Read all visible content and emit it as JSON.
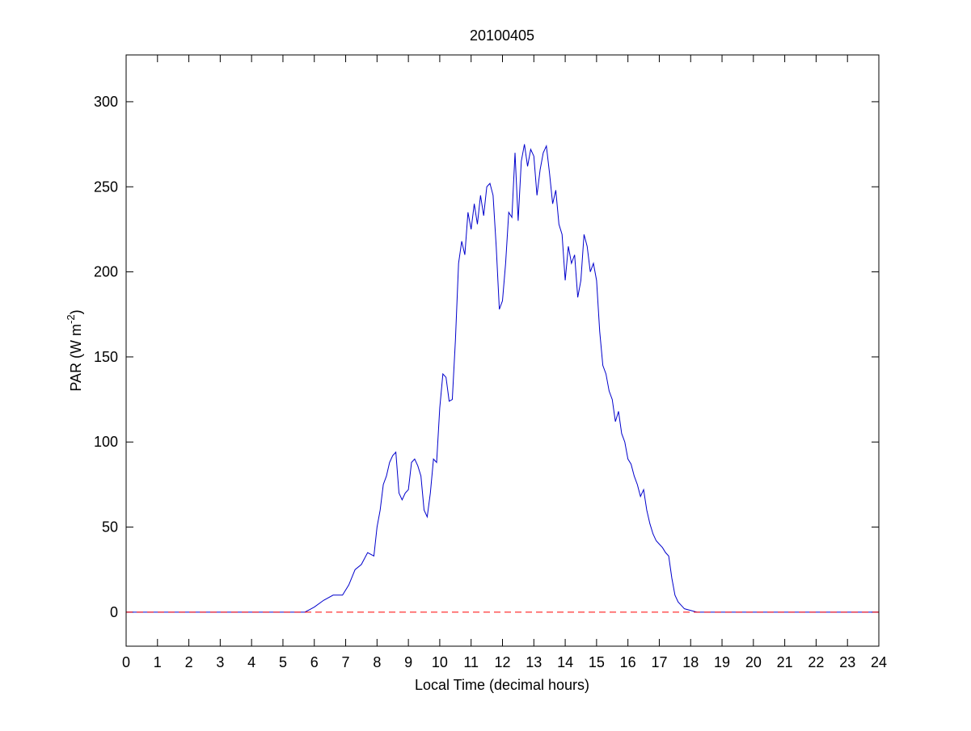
{
  "chart_data": {
    "type": "line",
    "title": "20100405",
    "xlabel": "Local Time (decimal hours)",
    "ylabel": {
      "text": "PAR (W m",
      "sup": "-2",
      "end": ")"
    },
    "x": [
      0,
      5.7,
      6.0,
      6.3,
      6.6,
      6.9,
      7.1,
      7.3,
      7.5,
      7.7,
      7.9,
      8.0,
      8.1,
      8.2,
      8.3,
      8.4,
      8.5,
      8.6,
      8.7,
      8.8,
      8.9,
      9.0,
      9.1,
      9.2,
      9.3,
      9.4,
      9.5,
      9.6,
      9.7,
      9.8,
      9.9,
      10.0,
      10.1,
      10.2,
      10.3,
      10.4,
      10.5,
      10.6,
      10.7,
      10.8,
      10.9,
      11.0,
      11.1,
      11.2,
      11.3,
      11.4,
      11.5,
      11.6,
      11.7,
      11.8,
      11.9,
      12.0,
      12.1,
      12.2,
      12.3,
      12.4,
      12.5,
      12.6,
      12.7,
      12.8,
      12.9,
      13.0,
      13.1,
      13.2,
      13.3,
      13.4,
      13.5,
      13.6,
      13.7,
      13.8,
      13.9,
      14.0,
      14.1,
      14.2,
      14.3,
      14.4,
      14.5,
      14.6,
      14.7,
      14.8,
      14.9,
      15.0,
      15.1,
      15.2,
      15.3,
      15.4,
      15.5,
      15.6,
      15.7,
      15.8,
      15.9,
      16.0,
      16.1,
      16.2,
      16.3,
      16.4,
      16.5,
      16.6,
      16.7,
      16.8,
      16.9,
      17.0,
      17.1,
      17.2,
      17.3,
      17.4,
      17.5,
      17.6,
      17.7,
      17.8,
      18.0,
      18.2,
      24
    ],
    "series": [
      {
        "color": "#0000cc",
        "values": [
          0,
          0,
          3,
          7,
          10,
          10,
          16,
          25,
          28,
          35,
          33,
          50,
          60,
          75,
          80,
          88,
          92,
          94,
          70,
          66,
          70,
          72,
          88,
          90,
          86,
          80,
          60,
          56,
          70,
          90,
          88,
          120,
          140,
          138,
          124,
          125,
          160,
          205,
          218,
          210,
          235,
          225,
          240,
          228,
          245,
          233,
          250,
          252,
          245,
          215,
          178,
          183,
          205,
          235,
          232,
          270,
          230,
          265,
          275,
          262,
          272,
          268,
          245,
          260,
          270,
          274,
          258,
          240,
          248,
          228,
          222,
          195,
          215,
          205,
          210,
          185,
          195,
          222,
          215,
          200,
          205,
          195,
          165,
          145,
          140,
          130,
          125,
          112,
          118,
          105,
          100,
          90,
          87,
          80,
          75,
          68,
          72,
          60,
          52,
          46,
          42,
          40,
          38,
          35,
          33,
          20,
          10,
          6,
          4,
          2,
          1,
          0,
          0
        ]
      }
    ],
    "reference_line": {
      "value": 0,
      "color": "#ff0000",
      "style": "dashed"
    },
    "xlim": [
      0,
      24
    ],
    "xticks": [
      0,
      1,
      2,
      3,
      4,
      5,
      6,
      7,
      8,
      9,
      10,
      11,
      12,
      13,
      14,
      15,
      16,
      17,
      18,
      19,
      20,
      21,
      22,
      23,
      24
    ],
    "ylim": [
      -20,
      327.5
    ],
    "yticks": [
      0,
      50,
      100,
      150,
      200,
      250,
      300
    ]
  }
}
